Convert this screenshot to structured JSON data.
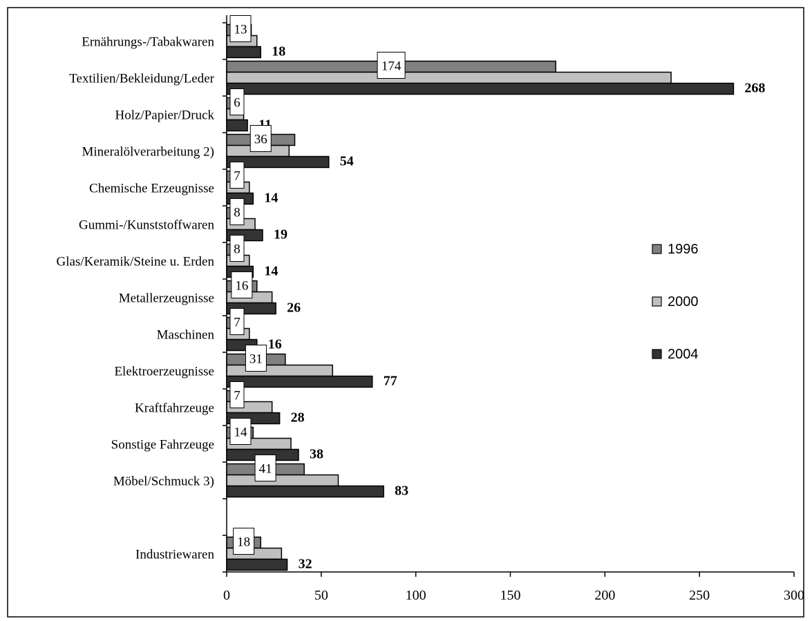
{
  "chart_data": {
    "type": "bar",
    "orientation": "horizontal",
    "title": "",
    "xlabel": "",
    "ylabel": "",
    "xlim": [
      0,
      300
    ],
    "x_ticks": [
      "0",
      "50",
      "100",
      "150",
      "200",
      "250",
      "300"
    ],
    "grid": false,
    "legend_position": "right",
    "categories": [
      "Ernährungs-/Tabakwaren",
      "Textilien/Bekleidung/Leder",
      "Holz/Papier/Druck",
      "Mineralölverarbeitung 2)",
      "Chemische Erzeugnisse",
      "Gummi-/Kunststoffwaren",
      "Glas/Keramik/Steine u. Erden",
      "Metallerzeugnisse",
      "Maschinen",
      "Elektroerzeugnisse",
      "Kraftfahrzeuge",
      "Sonstige Fahrzeuge",
      "Möbel/Schmuck 3)",
      "",
      "Industriewaren"
    ],
    "series": [
      {
        "name": "1996",
        "color": "#808080",
        "values": [
          13,
          174,
          6,
          36,
          7,
          8,
          8,
          16,
          7,
          31,
          7,
          14,
          41,
          null,
          18
        ]
      },
      {
        "name": "2000",
        "color": "#c0c0c0",
        "values": [
          16,
          235,
          9,
          33,
          12,
          15,
          12,
          24,
          12,
          56,
          24,
          34,
          59,
          null,
          29
        ]
      },
      {
        "name": "2004",
        "color": "#333333",
        "values": [
          18,
          268,
          11,
          54,
          14,
          19,
          14,
          26,
          16,
          77,
          28,
          38,
          83,
          null,
          32
        ]
      }
    ],
    "data_labels": {
      "1996": [
        "13",
        "174",
        "6",
        "36",
        "7",
        "8",
        "8",
        "16",
        "7",
        "31",
        "7",
        "14",
        "41",
        "",
        "18"
      ],
      "2004": [
        "18",
        "268",
        "11",
        "54",
        "14",
        "19",
        "14",
        "26",
        "16",
        "77",
        "28",
        "38",
        "83",
        "",
        "32"
      ]
    }
  }
}
